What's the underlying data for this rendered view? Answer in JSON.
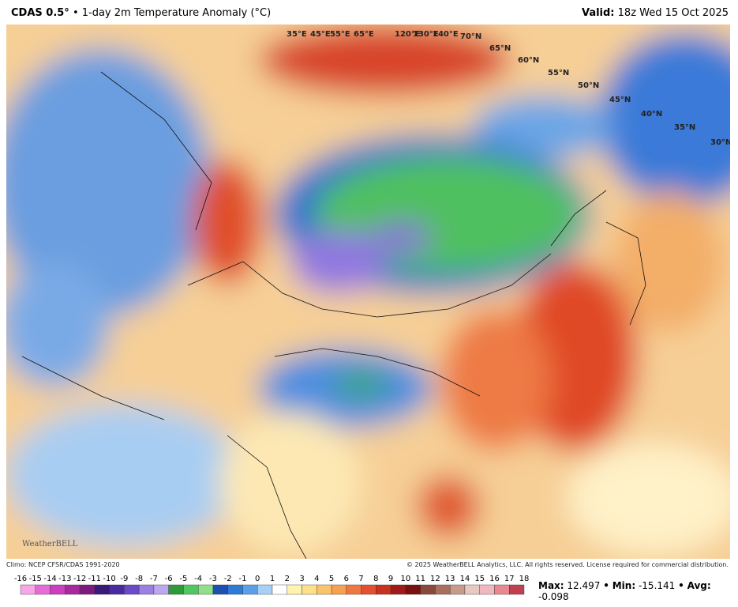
{
  "header": {
    "title": "CDAS 0.5°",
    "subtitle": "• 1-day 2m Temperature Anomaly (°C)",
    "valid_label": "Valid:",
    "valid": "18z Wed 15 Oct 2025"
  },
  "map": {
    "lon_labels": [
      "35°E",
      "45°E",
      "55°E",
      "65°E",
      "120°E",
      "130°E",
      "140°E"
    ],
    "lat_labels": [
      "70°N",
      "65°N",
      "60°N",
      "55°N",
      "50°N",
      "45°N",
      "40°N",
      "35°N",
      "30°N"
    ],
    "logo": "WeatherBELL"
  },
  "footer": {
    "climo": "Climo: NCEP CFSR/CDAS 1991-2020",
    "copyright": "© 2025 WeatherBELL Analytics, LLC. All rights reserved. License required for commercial distribution."
  },
  "colorbar": {
    "ticks": [
      -16,
      -15,
      -14,
      -13,
      -12,
      -11,
      -10,
      -9,
      -8,
      -7,
      -6,
      -5,
      -4,
      -3,
      -2,
      -1,
      0,
      1,
      2,
      3,
      4,
      5,
      6,
      7,
      8,
      9,
      10,
      11,
      12,
      13,
      14,
      15,
      16,
      17,
      18
    ],
    "colors": [
      "#f7a6e8",
      "#e86ad6",
      "#cc3ec0",
      "#a8289e",
      "#7e1a7e",
      "#3a1a78",
      "#4a2aa0",
      "#6a4ac8",
      "#9a80e0",
      "#bca8f0",
      "#2e9a3a",
      "#4fc860",
      "#8ee08a",
      "#1e50b0",
      "#2e7ad8",
      "#5aa0e8",
      "#a8d0f6",
      "#ffffff",
      "#fff3b0",
      "#fde08a",
      "#fbc46a",
      "#f7a050",
      "#f07840",
      "#e25030",
      "#c83020",
      "#a01a18",
      "#7a1010",
      "#8a4a3a",
      "#a8705e",
      "#c89a88",
      "#e8c8c0",
      "#f2b8c0",
      "#e88890",
      "#c04050"
    ]
  },
  "stats": {
    "max_label": "Max:",
    "max": 12.497,
    "sep": "•",
    "min_label": "Min:",
    "min": -15.141,
    "avg_label": "Avg:",
    "avg": -0.098
  }
}
